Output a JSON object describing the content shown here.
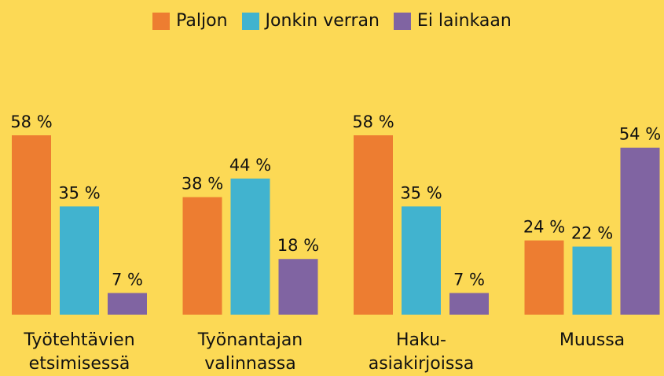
{
  "chart_data": {
    "type": "bar",
    "categories": [
      "Työtehtävien etsimisessä",
      "Työnantajan valinnassa",
      "Haku-asiakirjoissa",
      "Muussa"
    ],
    "series": [
      {
        "name": "Paljon",
        "color": "#ed7d31",
        "values": [
          58,
          38,
          58,
          24
        ],
        "value_labels": [
          "58 %",
          "38 %",
          "58 %",
          "24 %"
        ]
      },
      {
        "name": "Jonkin verran",
        "color": "#41b3cf",
        "values": [
          35,
          44,
          35,
          22
        ],
        "value_labels": [
          "35 %",
          "44 %",
          "35 %",
          "22 %"
        ]
      },
      {
        "name": "Ei lainkaan",
        "color": "#8064a2",
        "values": [
          7,
          18,
          7,
          54
        ],
        "value_labels": [
          "7 %",
          "18 %",
          "7 %",
          "54 %"
        ]
      }
    ],
    "legend": "top"
  }
}
